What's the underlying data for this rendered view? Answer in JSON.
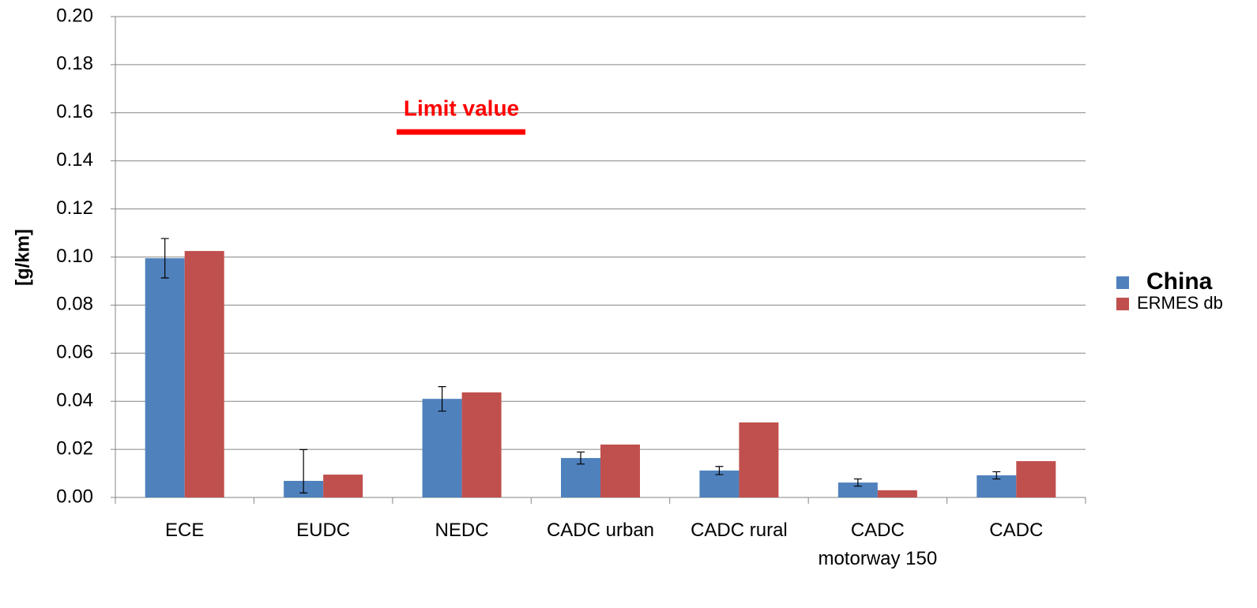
{
  "chart_data": {
    "type": "bar",
    "categories": [
      "ECE",
      "EUDC",
      "NEDC",
      "CADC urban",
      "CADC rural",
      "CADC motorway 150",
      "CADC"
    ],
    "series": [
      {
        "name": "China",
        "color": "#4f81bd",
        "values": [
          0.0995,
          0.0069,
          0.041,
          0.0164,
          0.0112,
          0.0062,
          0.0092
        ],
        "error_upper": [
          0.0082,
          0.013,
          0.0051,
          0.0025,
          0.0017,
          0.0015,
          0.0015
        ],
        "error_lower": [
          0.0082,
          0.005,
          0.0051,
          0.0025,
          0.0017,
          0.0015,
          0.0015
        ]
      },
      {
        "name": "ERMES db",
        "color": "#c0504d",
        "values": [
          0.1025,
          0.0095,
          0.0437,
          0.022,
          0.0312,
          0.003,
          0.0151
        ]
      }
    ],
    "y_label": "[g/km]",
    "limit": {
      "label": "Limit value",
      "value": 0.152,
      "color": "#ff0000"
    },
    "ylim": [
      0,
      0.2
    ],
    "yticks": [
      {
        "value": 0,
        "label": "0.00"
      },
      {
        "value": 0.02,
        "label": "0.02"
      },
      {
        "value": 0.04,
        "label": "0.04"
      },
      {
        "value": 0.06,
        "label": "0.06"
      },
      {
        "value": 0.08,
        "label": "0.08"
      },
      {
        "value": 0.1,
        "label": "0.10"
      },
      {
        "value": 0.12,
        "label": "0.12"
      },
      {
        "value": 0.14,
        "label": "0.14"
      },
      {
        "value": 0.16,
        "label": "0.16"
      },
      {
        "value": 0.18,
        "label": "0.18"
      },
      {
        "value": 0.2,
        "label": "0.20"
      }
    ],
    "grid": true,
    "legend": "right"
  }
}
